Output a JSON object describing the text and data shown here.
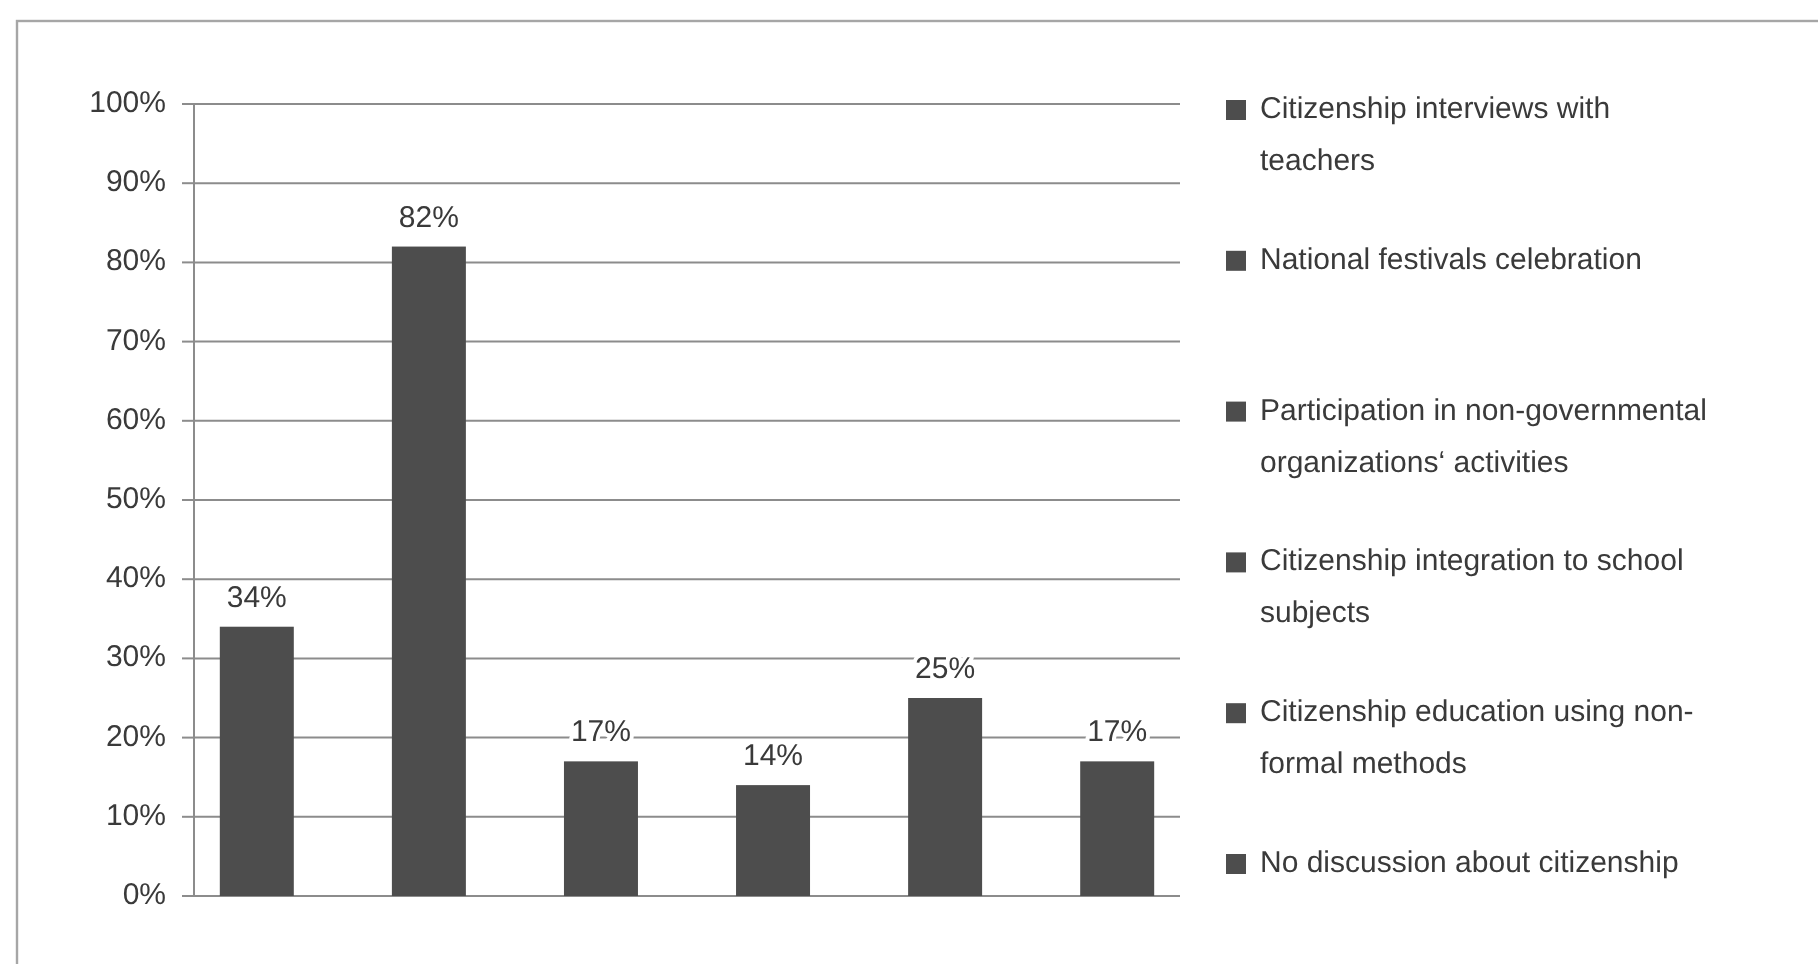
{
  "chart_data": {
    "type": "bar",
    "categories": [
      null
    ],
    "series": [
      {
        "name": "Citizenship interviews with teachers",
        "color": "#4d4d4d",
        "values": [
          34
        ],
        "value_labels": [
          "34%"
        ]
      },
      {
        "name": "National festivals celebration",
        "color": "#4d4d4d",
        "values": [
          82
        ],
        "value_labels": [
          "82%"
        ]
      },
      {
        "name": "Participation in non-governmental organizations‘ activities",
        "color": "#4d4d4d",
        "values": [
          17
        ],
        "value_labels": [
          "17%"
        ]
      },
      {
        "name": "Citizenship integration to school subjects",
        "color": "#4d4d4d",
        "values": [
          14
        ],
        "value_labels": [
          "14%"
        ]
      },
      {
        "name": "Citizenship education using non-formal methods",
        "color": "#4d4d4d",
        "values": [
          25
        ],
        "value_labels": [
          "25%"
        ]
      },
      {
        "name": "No discussion about citizenship",
        "color": "#4d4d4d",
        "values": [
          17
        ],
        "value_labels": [
          "17%"
        ]
      }
    ],
    "ylim": [
      0,
      100
    ],
    "yticks": [
      {
        "value": 0,
        "label": "0%"
      },
      {
        "value": 10,
        "label": "10%"
      },
      {
        "value": 20,
        "label": "20%"
      },
      {
        "value": 30,
        "label": "30%"
      },
      {
        "value": 40,
        "label": "40%"
      },
      {
        "value": 50,
        "label": "50%"
      },
      {
        "value": 60,
        "label": "60%"
      },
      {
        "value": 70,
        "label": "70%"
      },
      {
        "value": 80,
        "label": "80%"
      },
      {
        "value": 90,
        "label": "90%"
      },
      {
        "value": 100,
        "label": "100%"
      }
    ],
    "grid": "y",
    "legend": "right"
  }
}
